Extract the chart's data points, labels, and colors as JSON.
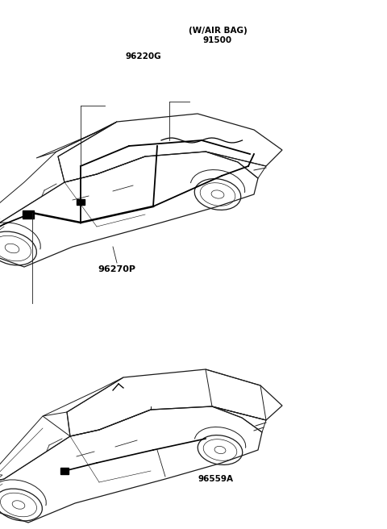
{
  "background_color": "#ffffff",
  "line_color": "#1a1a1a",
  "fig_width": 4.8,
  "fig_height": 6.56,
  "dpi": 100,
  "labels": {
    "airbag": "(W/AIR BAG)",
    "part1": "91500",
    "part2": "96220G",
    "part3": "96270P",
    "part4": "96559A"
  },
  "font_size": 7.5
}
